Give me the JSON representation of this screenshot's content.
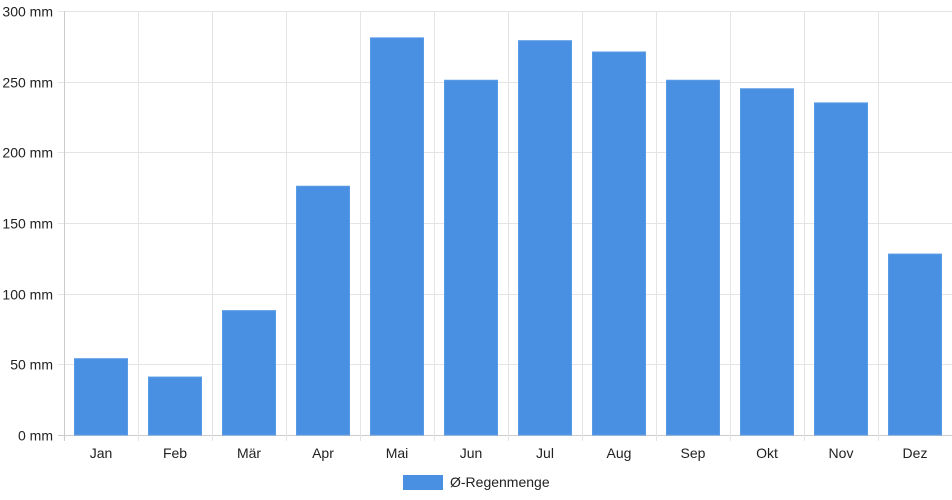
{
  "chart_data": {
    "type": "bar",
    "categories": [
      "Jan",
      "Feb",
      "Mär",
      "Apr",
      "Mai",
      "Jun",
      "Jul",
      "Aug",
      "Sep",
      "Okt",
      "Nov",
      "Dez"
    ],
    "series": [
      {
        "name": "Ø-Regenmenge",
        "values": [
          54,
          41,
          88,
          176,
          281,
          251,
          279,
          271,
          251,
          245,
          235,
          128
        ]
      }
    ],
    "title": "",
    "xlabel": "",
    "ylabel": "",
    "ylim": [
      0,
      300
    ],
    "yticks": [
      0,
      50,
      100,
      150,
      200,
      250,
      300
    ],
    "ytick_labels": [
      "0 mm",
      "50 mm",
      "100 mm",
      "150 mm",
      "200 mm",
      "250 mm",
      "300 mm"
    ],
    "grid": true,
    "legend_position": "bottom-center",
    "colors": {
      "bar": "#4a90e2",
      "grid": "#e4e4e4",
      "axis": "#cccccc",
      "text": "#222222"
    }
  }
}
